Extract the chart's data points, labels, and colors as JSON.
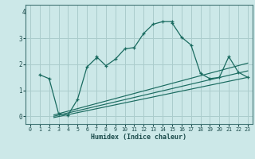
{
  "title": "",
  "xlabel": "Humidex (Indice chaleur)",
  "ylabel": "",
  "bg_color": "#cce8e8",
  "grid_color": "#aacccc",
  "line_color": "#1a6b60",
  "xlim": [
    -0.5,
    23.5
  ],
  "ylim": [
    -0.3,
    4.3
  ],
  "yticks": [
    0,
    1,
    2,
    3
  ],
  "xticks": [
    0,
    1,
    2,
    3,
    4,
    5,
    6,
    7,
    8,
    9,
    10,
    11,
    12,
    13,
    14,
    15,
    16,
    17,
    18,
    19,
    20,
    21,
    22,
    23
  ],
  "main_x": [
    1,
    2,
    3,
    4,
    5,
    6,
    7,
    7,
    8,
    9,
    10,
    11,
    12,
    13,
    14,
    15,
    15,
    16,
    17,
    18,
    19,
    20,
    21,
    22,
    23
  ],
  "main_y": [
    1.6,
    1.45,
    0.1,
    0.05,
    0.65,
    1.9,
    2.25,
    2.3,
    1.95,
    2.2,
    2.6,
    2.65,
    3.2,
    3.55,
    3.65,
    3.65,
    3.6,
    3.05,
    2.75,
    1.65,
    1.45,
    1.5,
    2.3,
    1.7,
    1.5
  ],
  "ref_lines": [
    {
      "x": [
        2.5,
        23
      ],
      "y": [
        0.05,
        2.05
      ]
    },
    {
      "x": [
        2.5,
        23
      ],
      "y": [
        0.0,
        1.75
      ]
    },
    {
      "x": [
        2.5,
        23
      ],
      "y": [
        -0.05,
        1.5
      ]
    }
  ]
}
